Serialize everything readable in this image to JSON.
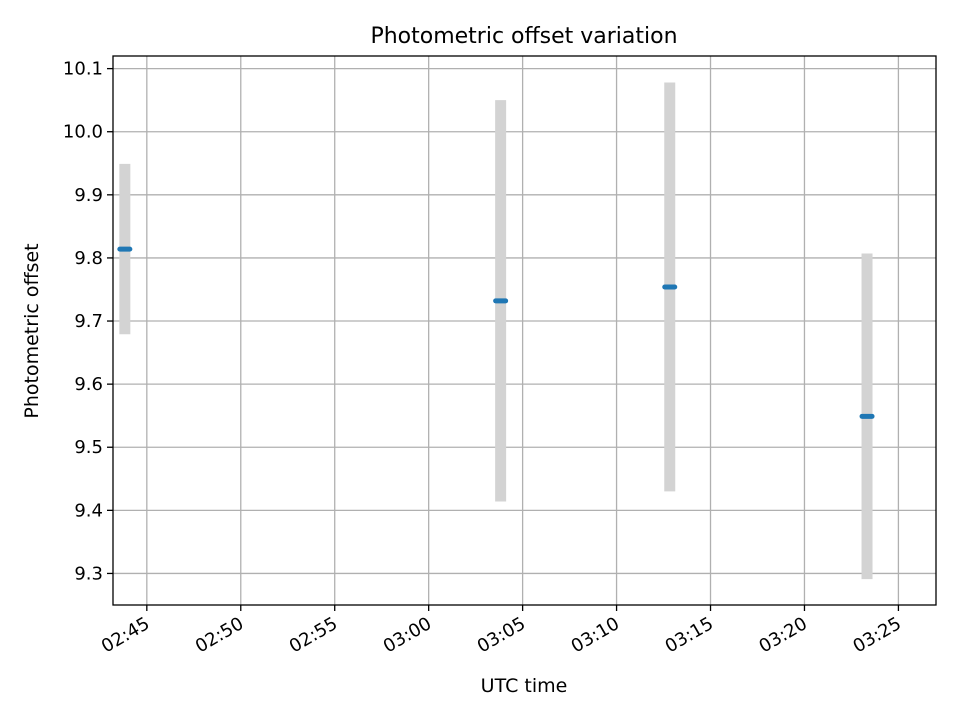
{
  "chart_data": {
    "type": "scatter",
    "title": "Photometric offset variation",
    "xlabel": "UTC time",
    "ylabel": "Photometric offset",
    "x_tick_labels": [
      "02:45",
      "02:50",
      "02:55",
      "03:00",
      "03:05",
      "03:10",
      "03:15",
      "03:20",
      "03:25"
    ],
    "x_ticks_min": [
      165,
      170,
      175,
      180,
      185,
      190,
      195,
      200,
      205
    ],
    "xlim_min": [
      163.2,
      207.0
    ],
    "y_ticks": [
      9.3,
      9.4,
      9.5,
      9.6,
      9.7,
      9.8,
      9.9,
      10.0,
      10.1
    ],
    "ylim": [
      9.25,
      10.12
    ],
    "grid": true,
    "series": [
      {
        "color": "#1f77b4",
        "error_color": "#d3d3d3",
        "points": [
          {
            "time": "02:43:50",
            "t_min": 163.83,
            "y": 9.814,
            "err": 0.135
          },
          {
            "time": "03:03:50",
            "t_min": 183.83,
            "y": 9.732,
            "err": 0.318
          },
          {
            "time": "03:12:50",
            "t_min": 192.83,
            "y": 9.754,
            "err": 0.324
          },
          {
            "time": "03:23:20",
            "t_min": 203.33,
            "y": 9.549,
            "err": 0.258
          }
        ]
      }
    ]
  }
}
